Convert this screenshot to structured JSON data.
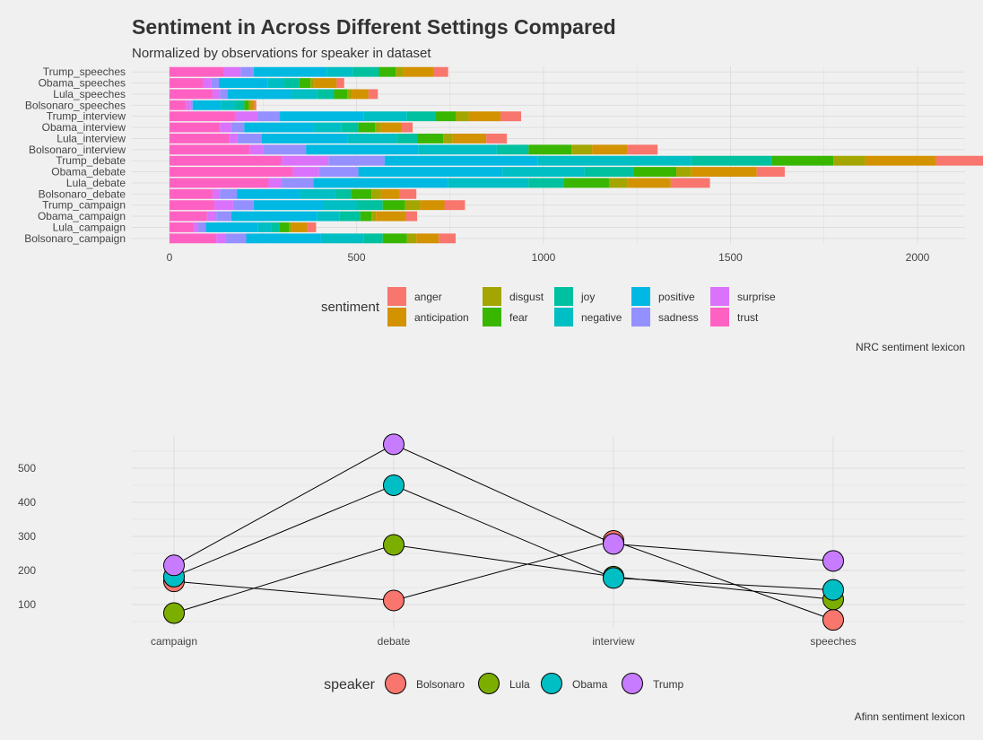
{
  "colors": {
    "background": "#f0f0f0",
    "grid": "#d9d9d9",
    "text": "#333333",
    "sentiment": {
      "trust": "#FF61C3",
      "surprise": "#DB72FB",
      "sadness": "#9590FF",
      "positive": "#00B9E3",
      "negative": "#00BFC4",
      "joy": "#00C19F",
      "fear": "#39B600",
      "disgust": "#A3A500",
      "anticipation": "#D39200",
      "anger": "#F8766D"
    },
    "speaker": {
      "Bolsonaro": "#F8766D",
      "Lula": "#7CAE00",
      "Obama": "#00BFC4",
      "Trump": "#C77CFF"
    }
  },
  "chart_data": [
    {
      "type": "bar",
      "orientation": "horizontal",
      "stacked": true,
      "title": "Sentiment in Across Different  Settings Compared",
      "subtitle": "Normalized by observations for speaker in dataset",
      "caption": "NRC sentiment lexicon",
      "xlim": [
        0,
        2120
      ],
      "xticks": [
        0,
        500,
        1000,
        1500,
        2000
      ],
      "grid": true,
      "legend_title": "sentiment",
      "legend_position": "bottom",
      "legend_entries": [
        "anger",
        "anticipation",
        "disgust",
        "fear",
        "joy",
        "negative",
        "positive",
        "sadness",
        "surprise",
        "trust"
      ],
      "stack_order": [
        "trust",
        "surprise",
        "sadness",
        "positive",
        "negative",
        "joy",
        "fear",
        "disgust",
        "anticipation",
        "anger"
      ],
      "categories": [
        "Trump_speeches",
        "Obama_speeches",
        "Lula_speeches",
        "Bolsonaro_speeches",
        "Trump_interview",
        "Obama_interview",
        "Lula_interview",
        "Bolsonaro_interview",
        "Trump_debate",
        "Obama_debate",
        "Lula_debate",
        "Bolsonaro_debate",
        "Trump_campaign",
        "Obama_campaign",
        "Lula_campaign",
        "Bolsonaro_campaign"
      ],
      "series": [
        {
          "name": "trust",
          "values": [
            145,
            90,
            115,
            45,
            175,
            135,
            160,
            215,
            300,
            330,
            265,
            115,
            120,
            100,
            65,
            125
          ]
        },
        {
          "name": "surprise",
          "values": [
            45,
            22,
            20,
            12,
            60,
            30,
            22,
            35,
            125,
            70,
            35,
            20,
            50,
            25,
            12,
            25
          ]
        },
        {
          "name": "sadness",
          "values": [
            35,
            20,
            20,
            5,
            60,
            35,
            65,
            115,
            150,
            105,
            85,
            45,
            55,
            40,
            20,
            55
          ]
        },
        {
          "name": "positive",
          "values": [
            195,
            130,
            170,
            75,
            225,
            185,
            230,
            300,
            410,
            385,
            360,
            170,
            185,
            230,
            140,
            200
          ]
        },
        {
          "name": "negative",
          "values": [
            70,
            45,
            70,
            38,
            115,
            75,
            130,
            210,
            410,
            220,
            215,
            95,
            90,
            60,
            35,
            115
          ]
        },
        {
          "name": "joy",
          "values": [
            70,
            40,
            45,
            25,
            75,
            45,
            55,
            85,
            215,
            130,
            95,
            40,
            70,
            55,
            22,
            50
          ]
        },
        {
          "name": "fear",
          "values": [
            45,
            30,
            35,
            12,
            55,
            45,
            70,
            115,
            165,
            115,
            120,
            55,
            60,
            30,
            25,
            65
          ]
        },
        {
          "name": "disgust",
          "values": [
            20,
            10,
            12,
            5,
            35,
            15,
            25,
            55,
            85,
            40,
            50,
            25,
            40,
            12,
            8,
            25
          ]
        },
        {
          "name": "anticipation",
          "values": [
            80,
            60,
            45,
            10,
            85,
            55,
            90,
            95,
            190,
            175,
            115,
            50,
            65,
            80,
            40,
            60
          ]
        },
        {
          "name": "anger",
          "values": [
            40,
            20,
            25,
            5,
            55,
            30,
            55,
            80,
            150,
            75,
            105,
            45,
            55,
            30,
            25,
            45
          ]
        }
      ]
    },
    {
      "type": "scatter",
      "connected": true,
      "caption": "Afinn sentiment lexicon",
      "ylim": [
        20,
        590
      ],
      "yticks": [
        100,
        200,
        300,
        400,
        500
      ],
      "grid": true,
      "categories": [
        "campaign",
        "debate",
        "interview",
        "speeches"
      ],
      "legend_title": "speaker",
      "legend_position": "bottom",
      "series": [
        {
          "name": "Bolsonaro",
          "values": [
            168,
            112,
            287,
            55
          ]
        },
        {
          "name": "Lula",
          "values": [
            75,
            275,
            182,
            115
          ]
        },
        {
          "name": "Obama",
          "values": [
            182,
            450,
            178,
            143
          ]
        },
        {
          "name": "Trump",
          "values": [
            215,
            570,
            278,
            228
          ]
        }
      ]
    }
  ]
}
